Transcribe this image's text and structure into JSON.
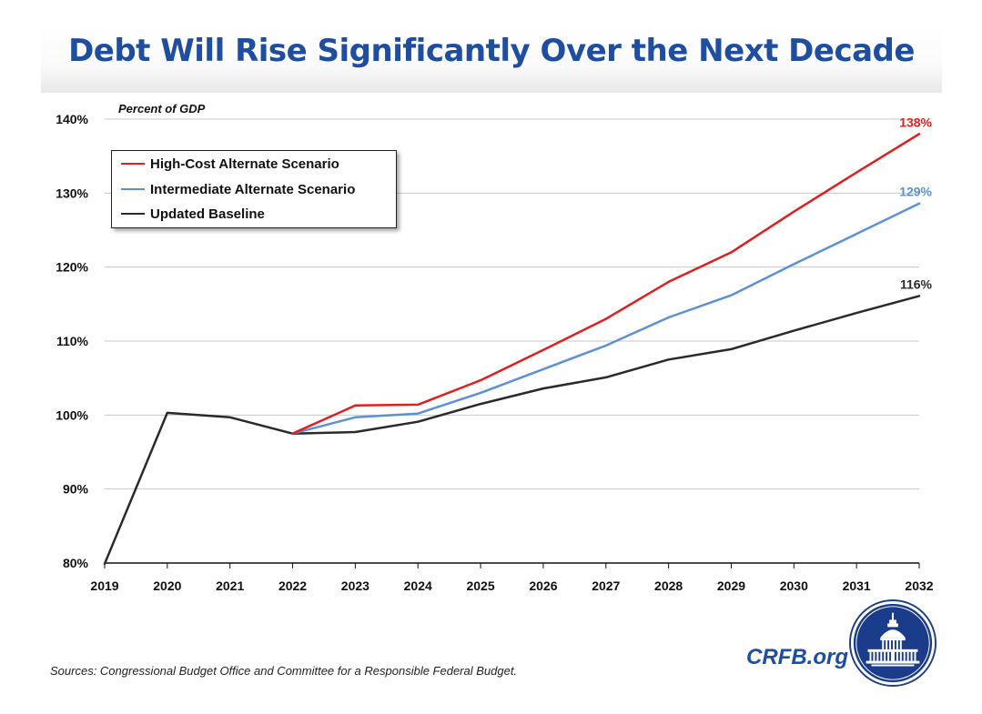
{
  "title": "Debt Will Rise Significantly Over the Next Decade",
  "source": "Sources: Congressional Budget Office and Committee for a Responsible Federal Budget.",
  "brand": "CRFB.org",
  "colors": {
    "title": "#1f4ea1",
    "high_cost": "#e01f1f",
    "intermediate": "#5b91d6",
    "baseline": "#2a2a2a"
  },
  "chart_data": {
    "type": "line",
    "ylabel": "Percent of GDP",
    "x": [
      2019,
      2020,
      2021,
      2022,
      2023,
      2024,
      2025,
      2026,
      2027,
      2028,
      2029,
      2030,
      2031,
      2032
    ],
    "ylim": [
      80,
      140
    ],
    "yticks": [
      "80%",
      "90%",
      "100%",
      "110%",
      "120%",
      "130%",
      "140%"
    ],
    "grid": true,
    "legend": "top-left",
    "series": [
      {
        "name": "High-Cost Alternate Scenario",
        "color": "#e01f1f",
        "x": [
          2022,
          2023,
          2024,
          2025,
          2026,
          2027,
          2028,
          2029,
          2030,
          2031,
          2032
        ],
        "values": [
          97.5,
          101.3,
          101.4,
          104.7,
          108.8,
          113.0,
          118.0,
          122.0,
          127.5,
          132.8,
          138.0
        ],
        "end_label": "138%"
      },
      {
        "name": "Intermediate Alternate Scenario",
        "color": "#5b91d6",
        "x": [
          2022,
          2023,
          2024,
          2025,
          2026,
          2027,
          2028,
          2029,
          2030,
          2031,
          2032
        ],
        "values": [
          97.5,
          99.7,
          100.2,
          103.0,
          106.2,
          109.4,
          113.2,
          116.2,
          120.4,
          124.5,
          128.6
        ],
        "end_label": "129%"
      },
      {
        "name": "Updated Baseline",
        "color": "#2a2a2a",
        "x": [
          2019,
          2020,
          2021,
          2022,
          2023,
          2024,
          2025,
          2026,
          2027,
          2028,
          2029,
          2030,
          2031,
          2032
        ],
        "values": [
          79.9,
          100.3,
          99.7,
          97.5,
          97.7,
          99.1,
          101.5,
          103.6,
          105.1,
          107.5,
          108.9,
          111.4,
          113.8,
          116.1
        ],
        "end_label": "116%"
      }
    ]
  }
}
